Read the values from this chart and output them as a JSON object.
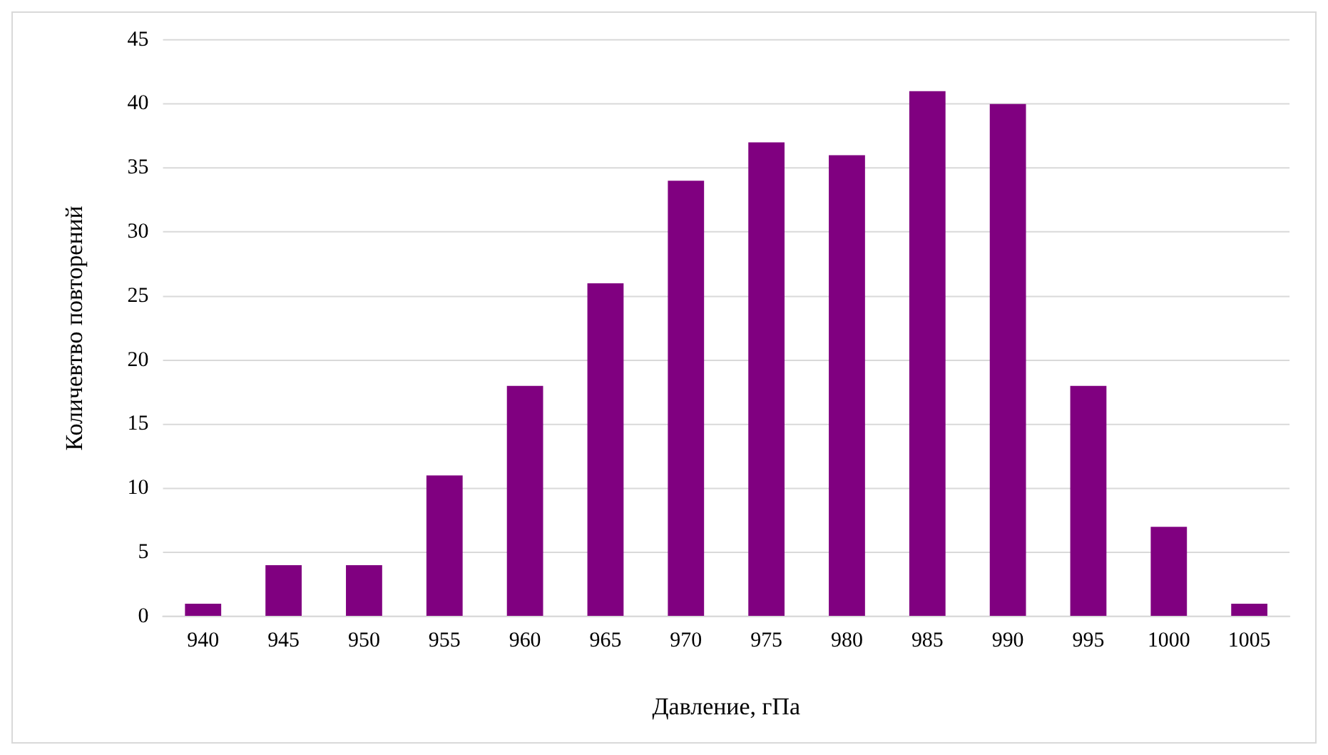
{
  "chart_data": {
    "type": "bar",
    "xlabel": "Давление, гПа",
    "ylabel": "Количевтво повторений",
    "categories": [
      "940",
      "945",
      "950",
      "955",
      "960",
      "965",
      "970",
      "975",
      "980",
      "985",
      "990",
      "995",
      "1000",
      "1005"
    ],
    "values": [
      1,
      4,
      4,
      11,
      18,
      26,
      34,
      37,
      36,
      41,
      40,
      18,
      7,
      1
    ],
    "color": "#800080",
    "ylim": [
      0,
      45
    ],
    "yticks": [
      0,
      5,
      10,
      15,
      20,
      25,
      30,
      35,
      40,
      45
    ],
    "grid": "y",
    "legend": false
  }
}
